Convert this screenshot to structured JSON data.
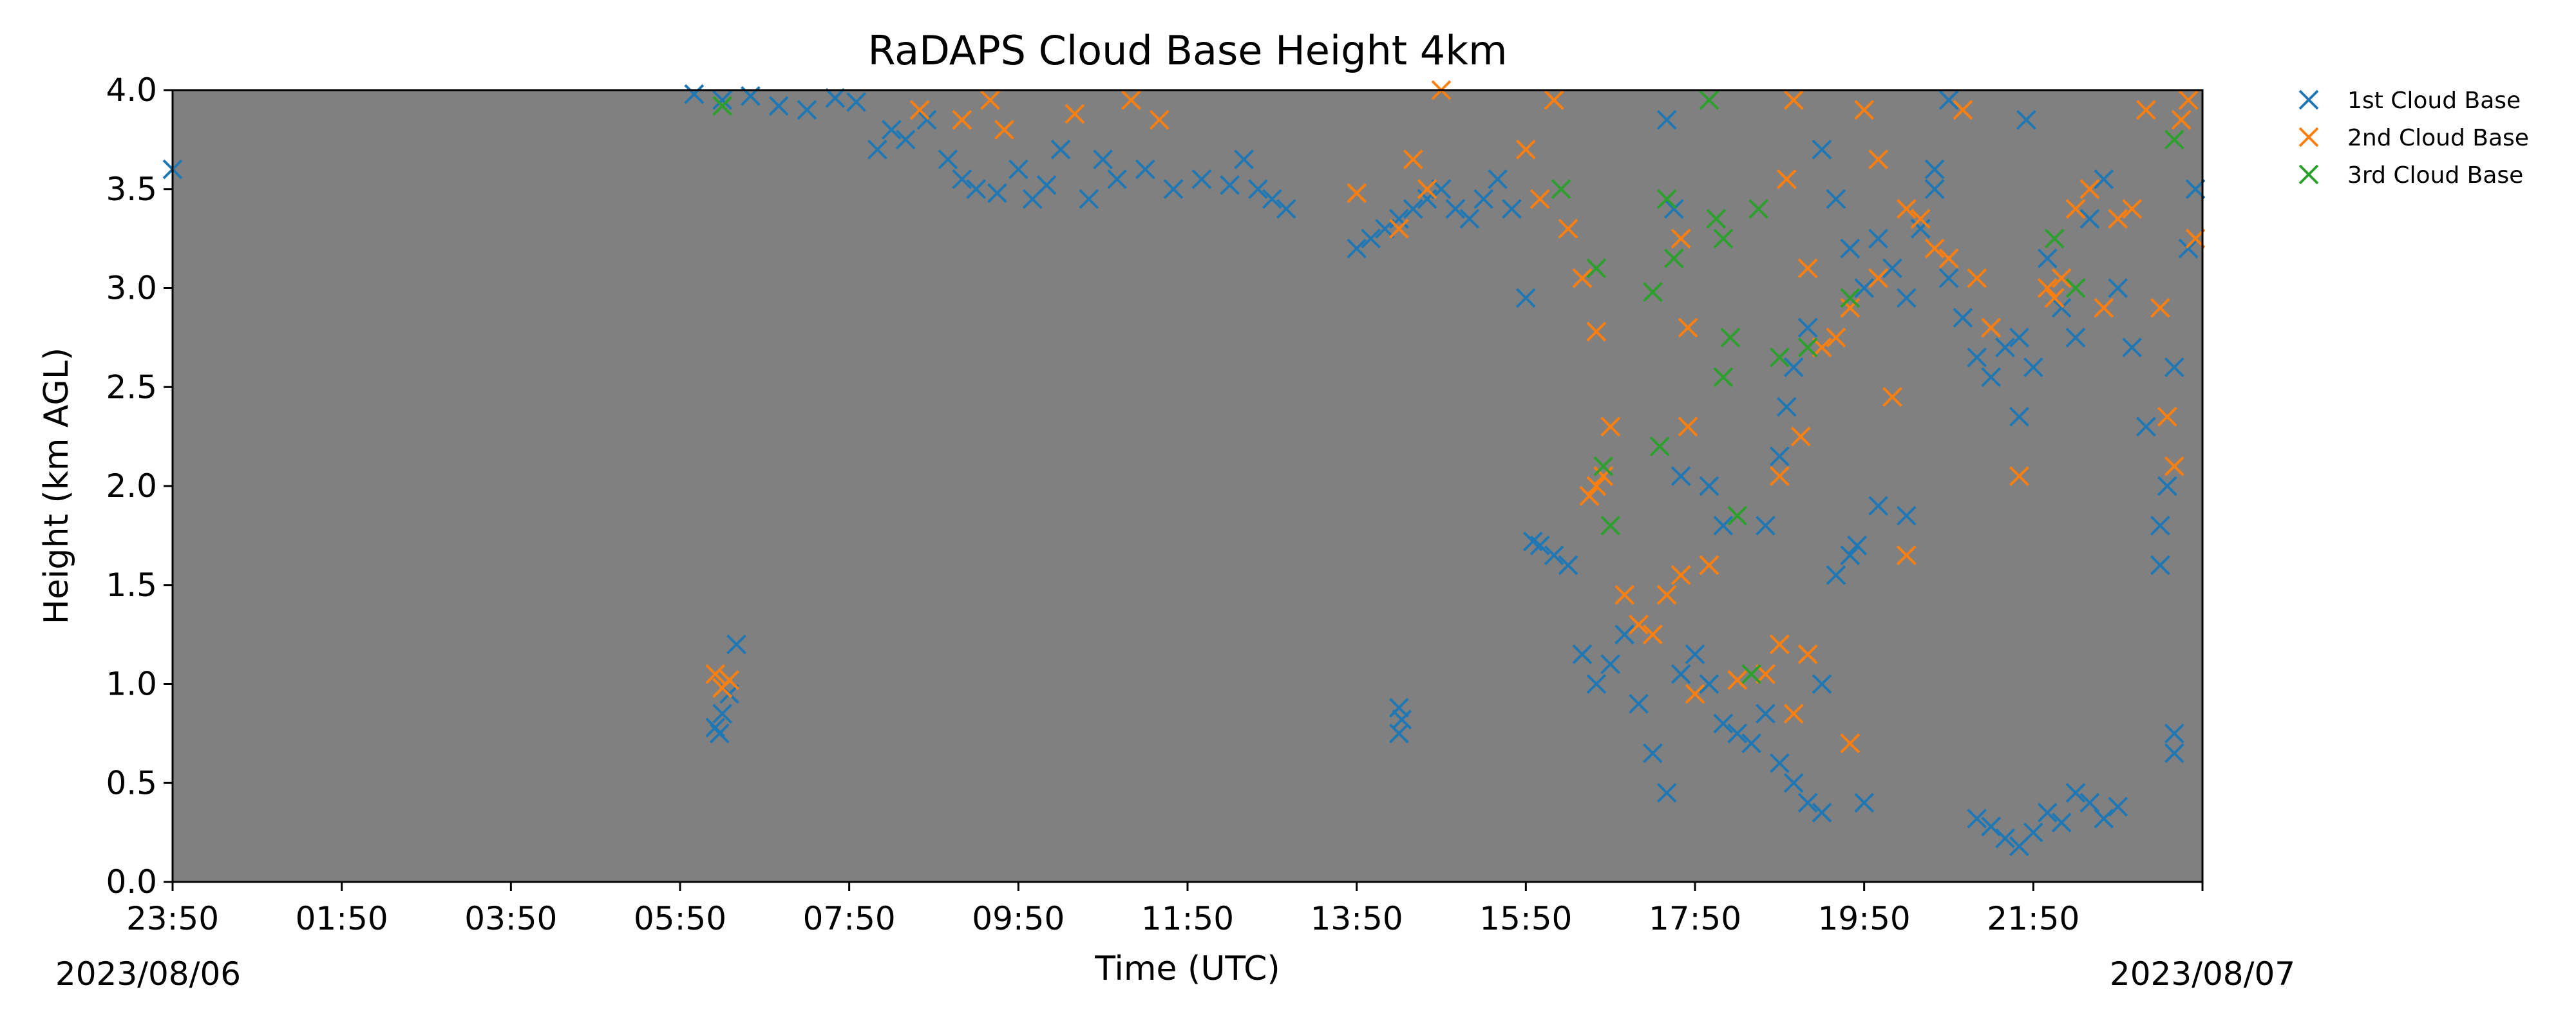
{
  "chart_data": {
    "type": "scatter",
    "title": "RaDAPS Cloud Base Height 4km",
    "xlabel": "Time (UTC)",
    "ylabel": "Height (km AGL)",
    "ylim": [
      0,
      4
    ],
    "xlim": [
      "2023-08-06T23:50",
      "2023-08-07T23:50"
    ],
    "x_tick_labels": [
      "23:50",
      "01:50",
      "03:50",
      "05:50",
      "07:50",
      "09:50",
      "11:50",
      "13:50",
      "15:50",
      "17:50",
      "19:50",
      "21:50"
    ],
    "y_tick_labels": [
      "0.0",
      "0.5",
      "1.0",
      "1.5",
      "2.0",
      "2.5",
      "3.0",
      "3.5",
      "4.0"
    ],
    "start_date_label": "2023/08/06",
    "end_date_label": "2023/08/07",
    "plot_background": "#808080",
    "grid": false,
    "legend_position": "outside-top-right",
    "marker": "x",
    "series": [
      {
        "name": "1st Cloud Base",
        "color": "#1f77b4",
        "points": [
          [
            "06:00",
            3.98
          ],
          [
            "06:20",
            3.95
          ],
          [
            "06:40",
            3.97
          ],
          [
            "07:00",
            3.92
          ],
          [
            "07:20",
            3.9
          ],
          [
            "07:40",
            3.96
          ],
          [
            "07:55",
            3.94
          ],
          [
            "06:15",
            0.78
          ],
          [
            "06:20",
            0.85
          ],
          [
            "06:25",
            0.95
          ],
          [
            "06:30",
            1.2
          ],
          [
            "06:18",
            0.75
          ],
          [
            "08:10",
            3.7
          ],
          [
            "08:20",
            3.8
          ],
          [
            "08:30",
            3.75
          ],
          [
            "08:45",
            3.85
          ],
          [
            "09:00",
            3.65
          ],
          [
            "09:10",
            3.55
          ],
          [
            "09:20",
            3.5
          ],
          [
            "09:35",
            3.48
          ],
          [
            "09:50",
            3.6
          ],
          [
            "10:00",
            3.45
          ],
          [
            "10:10",
            3.52
          ],
          [
            "10:20",
            3.7
          ],
          [
            "10:40",
            3.45
          ],
          [
            "10:50",
            3.65
          ],
          [
            "11:00",
            3.55
          ],
          [
            "11:20",
            3.6
          ],
          [
            "11:40",
            3.5
          ],
          [
            "12:00",
            3.55
          ],
          [
            "12:20",
            3.52
          ],
          [
            "12:40",
            3.5
          ],
          [
            "12:50",
            3.45
          ],
          [
            "13:00",
            3.4
          ],
          [
            "12:30",
            3.65
          ],
          [
            "11:30",
            3.85
          ],
          [
            "13:50",
            3.2
          ],
          [
            "14:00",
            3.25
          ],
          [
            "14:10",
            3.3
          ],
          [
            "14:20",
            3.35
          ],
          [
            "14:30",
            3.4
          ],
          [
            "14:40",
            3.45
          ],
          [
            "14:50",
            3.5
          ],
          [
            "15:00",
            3.4
          ],
          [
            "15:10",
            3.35
          ],
          [
            "15:20",
            3.45
          ],
          [
            "15:30",
            3.55
          ],
          [
            "15:40",
            3.4
          ],
          [
            "15:50",
            2.95
          ],
          [
            "14:20",
            0.88
          ],
          [
            "14:20",
            0.75
          ],
          [
            "14:22",
            0.82
          ],
          [
            "15:55",
            1.72
          ],
          [
            "16:00",
            1.7
          ],
          [
            "16:10",
            1.65
          ],
          [
            "16:20",
            1.6
          ],
          [
            "16:30",
            1.15
          ],
          [
            "16:40",
            1.0
          ],
          [
            "16:50",
            1.1
          ],
          [
            "17:00",
            1.25
          ],
          [
            "17:10",
            0.9
          ],
          [
            "17:20",
            0.65
          ],
          [
            "17:30",
            0.45
          ],
          [
            "17:40",
            1.05
          ],
          [
            "17:50",
            1.15
          ],
          [
            "18:00",
            1.0
          ],
          [
            "18:10",
            0.8
          ],
          [
            "18:20",
            0.75
          ],
          [
            "18:30",
            0.7
          ],
          [
            "18:40",
            0.85
          ],
          [
            "18:50",
            0.6
          ],
          [
            "19:00",
            0.5
          ],
          [
            "19:10",
            0.4
          ],
          [
            "19:20",
            0.35
          ],
          [
            "19:50",
            0.4
          ],
          [
            "17:30",
            3.85
          ],
          [
            "17:35",
            3.4
          ],
          [
            "17:40",
            2.05
          ],
          [
            "18:00",
            2.0
          ],
          [
            "18:10",
            1.8
          ],
          [
            "18:40",
            1.8
          ],
          [
            "18:50",
            2.15
          ],
          [
            "18:55",
            2.4
          ],
          [
            "19:00",
            2.6
          ],
          [
            "19:10",
            2.8
          ],
          [
            "19:20",
            3.7
          ],
          [
            "19:30",
            3.45
          ],
          [
            "19:40",
            3.2
          ],
          [
            "19:50",
            3.0
          ],
          [
            "20:00",
            3.25
          ],
          [
            "20:10",
            3.1
          ],
          [
            "20:20",
            2.95
          ],
          [
            "20:30",
            3.3
          ],
          [
            "20:40",
            3.5
          ],
          [
            "20:50",
            3.05
          ],
          [
            "21:00",
            2.85
          ],
          [
            "21:10",
            2.65
          ],
          [
            "21:20",
            2.55
          ],
          [
            "21:30",
            2.7
          ],
          [
            "21:40",
            2.75
          ],
          [
            "21:50",
            2.6
          ],
          [
            "19:30",
            1.55
          ],
          [
            "19:40",
            1.65
          ],
          [
            "20:00",
            1.9
          ],
          [
            "20:20",
            1.85
          ],
          [
            "20:40",
            3.6
          ],
          [
            "20:50",
            3.95
          ],
          [
            "19:20",
            1.0
          ],
          [
            "19:45",
            1.7
          ],
          [
            "21:10",
            0.32
          ],
          [
            "21:20",
            0.28
          ],
          [
            "21:30",
            0.22
          ],
          [
            "21:40",
            0.18
          ],
          [
            "21:50",
            0.25
          ],
          [
            "22:00",
            0.35
          ],
          [
            "22:10",
            0.3
          ],
          [
            "22:20",
            0.45
          ],
          [
            "22:30",
            0.4
          ],
          [
            "22:40",
            0.32
          ],
          [
            "22:50",
            0.38
          ],
          [
            "21:40",
            2.35
          ],
          [
            "21:45",
            3.85
          ],
          [
            "22:00",
            3.15
          ],
          [
            "22:10",
            2.9
          ],
          [
            "22:20",
            2.75
          ],
          [
            "22:30",
            3.35
          ],
          [
            "22:40",
            3.55
          ],
          [
            "22:50",
            3.0
          ],
          [
            "23:00",
            2.7
          ],
          [
            "23:10",
            2.3
          ],
          [
            "23:20",
            1.6
          ],
          [
            "23:20",
            1.8
          ],
          [
            "23:25",
            2.0
          ],
          [
            "23:30",
            2.6
          ],
          [
            "23:40",
            3.2
          ],
          [
            "23:45",
            3.5
          ],
          [
            "23:50",
            3.6
          ],
          [
            "23:30",
            0.75
          ],
          [
            "23:30",
            0.65
          ]
        ]
      },
      {
        "name": "2nd Cloud Base",
        "color": "#ff7f0e",
        "points": [
          [
            "06:15",
            1.05
          ],
          [
            "06:20",
            0.98
          ],
          [
            "06:25",
            1.02
          ],
          [
            "08:40",
            3.9
          ],
          [
            "09:10",
            3.85
          ],
          [
            "09:30",
            3.95
          ],
          [
            "09:40",
            3.8
          ],
          [
            "10:30",
            3.88
          ],
          [
            "11:10",
            3.95
          ],
          [
            "11:30",
            3.85
          ],
          [
            "14:50",
            4.0
          ],
          [
            "14:20",
            3.3
          ],
          [
            "14:30",
            3.65
          ],
          [
            "14:40",
            3.5
          ],
          [
            "13:50",
            3.48
          ],
          [
            "15:50",
            3.7
          ],
          [
            "16:00",
            3.45
          ],
          [
            "16:10",
            3.95
          ],
          [
            "16:20",
            3.3
          ],
          [
            "16:30",
            3.05
          ],
          [
            "16:40",
            2.78
          ],
          [
            "16:35",
            1.95
          ],
          [
            "16:40",
            2.0
          ],
          [
            "16:45",
            2.05
          ],
          [
            "16:50",
            2.3
          ],
          [
            "17:00",
            1.45
          ],
          [
            "17:10",
            1.3
          ],
          [
            "17:20",
            1.25
          ],
          [
            "17:30",
            1.45
          ],
          [
            "17:40",
            1.55
          ],
          [
            "17:45",
            2.3
          ],
          [
            "17:45",
            2.8
          ],
          [
            "17:50",
            0.95
          ],
          [
            "18:00",
            1.6
          ],
          [
            "17:40",
            3.25
          ],
          [
            "18:20",
            1.02
          ],
          [
            "18:40",
            1.05
          ],
          [
            "18:50",
            1.2
          ],
          [
            "19:00",
            0.85
          ],
          [
            "19:10",
            1.15
          ],
          [
            "18:50",
            2.05
          ],
          [
            "18:55",
            3.55
          ],
          [
            "19:00",
            3.95
          ],
          [
            "19:05",
            2.25
          ],
          [
            "19:10",
            3.1
          ],
          [
            "19:20",
            2.7
          ],
          [
            "19:30",
            2.75
          ],
          [
            "19:40",
            2.9
          ],
          [
            "19:50",
            3.9
          ],
          [
            "20:00",
            3.65
          ],
          [
            "20:10",
            2.45
          ],
          [
            "20:20",
            1.65
          ],
          [
            "19:40",
            0.7
          ],
          [
            "20:00",
            3.05
          ],
          [
            "20:20",
            3.4
          ],
          [
            "20:30",
            3.35
          ],
          [
            "20:40",
            3.2
          ],
          [
            "20:50",
            3.15
          ],
          [
            "21:00",
            3.9
          ],
          [
            "21:10",
            3.05
          ],
          [
            "21:20",
            2.8
          ],
          [
            "21:40",
            2.05
          ],
          [
            "22:00",
            3.0
          ],
          [
            "22:05",
            2.95
          ],
          [
            "22:10",
            3.05
          ],
          [
            "22:20",
            3.4
          ],
          [
            "22:30",
            3.5
          ],
          [
            "22:40",
            2.9
          ],
          [
            "22:50",
            3.35
          ],
          [
            "23:00",
            3.4
          ],
          [
            "23:10",
            3.9
          ],
          [
            "23:20",
            2.9
          ],
          [
            "23:25",
            2.35
          ],
          [
            "23:30",
            2.1
          ],
          [
            "23:35",
            3.85
          ],
          [
            "23:40",
            3.95
          ],
          [
            "23:45",
            3.25
          ]
        ]
      },
      {
        "name": "3rd Cloud Base",
        "color": "#2ca02c",
        "points": [
          [
            "06:20",
            3.92
          ],
          [
            "16:15",
            3.5
          ],
          [
            "16:40",
            3.1
          ],
          [
            "16:45",
            2.1
          ],
          [
            "16:50",
            1.8
          ],
          [
            "17:20",
            2.98
          ],
          [
            "17:25",
            2.2
          ],
          [
            "17:30",
            3.45
          ],
          [
            "17:35",
            3.15
          ],
          [
            "18:00",
            3.95
          ],
          [
            "18:05",
            3.35
          ],
          [
            "18:10",
            3.25
          ],
          [
            "18:10",
            2.55
          ],
          [
            "18:15",
            2.75
          ],
          [
            "18:20",
            1.85
          ],
          [
            "18:30",
            1.05
          ],
          [
            "18:35",
            3.4
          ],
          [
            "18:50",
            2.65
          ],
          [
            "19:10",
            2.7
          ],
          [
            "19:40",
            2.95
          ],
          [
            "22:05",
            3.25
          ],
          [
            "22:20",
            3.0
          ],
          [
            "23:30",
            3.75
          ]
        ]
      }
    ]
  }
}
